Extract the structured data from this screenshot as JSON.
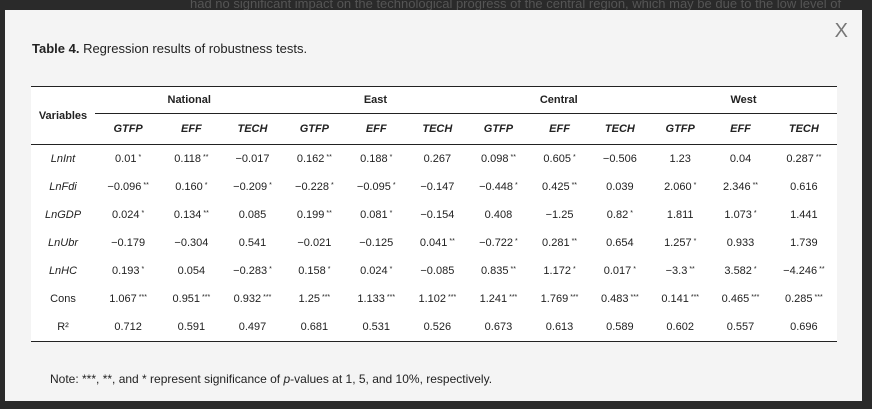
{
  "background_text": "had no significant impact on the technological progress of the central region, which may be due to the low level of",
  "modal": {
    "close_label": "X",
    "title_bold": "Table 4.",
    "title_rest": " Regression results of robustness tests.",
    "note_pre": "Note: ***, **, and * represent significance of ",
    "note_italic": "p",
    "note_post": "-values at 1, 5, and 10%, respectively."
  },
  "table": {
    "variables_header": "Variables",
    "regions": [
      "National",
      "East",
      "Central",
      "West"
    ],
    "subheaders": [
      "GTFP",
      "EFF",
      "TECH",
      "GTFP",
      "EFF",
      "TECH",
      "GTFP",
      "EFF",
      "TECH",
      "GTFP",
      "EFF",
      "TECH"
    ],
    "rows": [
      {
        "label": "LnInt",
        "italic": true,
        "cells": [
          [
            "0.01",
            "*"
          ],
          [
            "0.118",
            "**"
          ],
          [
            "−0.017",
            ""
          ],
          [
            "0.162",
            "**"
          ],
          [
            "0.188",
            "*"
          ],
          [
            "0.267",
            ""
          ],
          [
            "0.098",
            "**"
          ],
          [
            "0.605",
            "*"
          ],
          [
            "−0.506",
            ""
          ],
          [
            "1.23",
            ""
          ],
          [
            "0.04",
            ""
          ],
          [
            "0.287",
            "**"
          ]
        ]
      },
      {
        "label": "LnFdi",
        "italic": true,
        "cells": [
          [
            "−0.096",
            "**"
          ],
          [
            "0.160",
            "*"
          ],
          [
            "−0.209",
            "*"
          ],
          [
            "−0.228",
            "*"
          ],
          [
            "−0.095",
            "*"
          ],
          [
            "−0.147",
            ""
          ],
          [
            "−0.448",
            "*"
          ],
          [
            "0.425",
            "**"
          ],
          [
            "0.039",
            ""
          ],
          [
            "2.060",
            "*"
          ],
          [
            "2.346",
            "**"
          ],
          [
            "0.616",
            ""
          ]
        ]
      },
      {
        "label": "LnGDP",
        "italic": true,
        "cells": [
          [
            "0.024",
            "*"
          ],
          [
            "0.134",
            "**"
          ],
          [
            "0.085",
            ""
          ],
          [
            "0.199",
            "**"
          ],
          [
            "0.081",
            "*"
          ],
          [
            "−0.154",
            ""
          ],
          [
            "0.408",
            ""
          ],
          [
            "−1.25",
            ""
          ],
          [
            "0.82",
            "*"
          ],
          [
            "1.811",
            ""
          ],
          [
            "1.073",
            "*"
          ],
          [
            "1.441",
            ""
          ]
        ]
      },
      {
        "label": "LnUbr",
        "italic": true,
        "cells": [
          [
            "−0.179",
            ""
          ],
          [
            "−0.304",
            ""
          ],
          [
            "0.541",
            ""
          ],
          [
            "−0.021",
            ""
          ],
          [
            "−0.125",
            ""
          ],
          [
            "0.041",
            "**"
          ],
          [
            "−0.722",
            "*"
          ],
          [
            "0.281",
            "**"
          ],
          [
            "0.654",
            ""
          ],
          [
            "1.257",
            "*"
          ],
          [
            "0.933",
            ""
          ],
          [
            "1.739",
            ""
          ]
        ]
      },
      {
        "label": "LnHC",
        "italic": true,
        "cells": [
          [
            "0.193",
            "*"
          ],
          [
            "0.054",
            ""
          ],
          [
            "−0.283",
            "*"
          ],
          [
            "0.158",
            "*"
          ],
          [
            "0.024",
            "*"
          ],
          [
            "−0.085",
            ""
          ],
          [
            "0.835",
            "**"
          ],
          [
            "1.172",
            "*"
          ],
          [
            "0.017",
            "*"
          ],
          [
            "−3.3",
            "**"
          ],
          [
            "3.582",
            "*"
          ],
          [
            "−4.246",
            "**"
          ]
        ]
      },
      {
        "label": "Cons",
        "italic": false,
        "cells": [
          [
            "1.067",
            "***"
          ],
          [
            "0.951",
            "***"
          ],
          [
            "0.932",
            "***"
          ],
          [
            "1.25",
            "***"
          ],
          [
            "1.133",
            "***"
          ],
          [
            "1.102",
            "***"
          ],
          [
            "1.241",
            "***"
          ],
          [
            "1.769",
            "***"
          ],
          [
            "0.483",
            "***"
          ],
          [
            "0.141",
            "***"
          ],
          [
            "0.465",
            "***"
          ],
          [
            "0.285",
            "***"
          ]
        ]
      },
      {
        "label": "R²",
        "italic": false,
        "cells": [
          [
            "0.712",
            ""
          ],
          [
            "0.591",
            ""
          ],
          [
            "0.497",
            ""
          ],
          [
            "0.681",
            ""
          ],
          [
            "0.531",
            ""
          ],
          [
            "0.526",
            ""
          ],
          [
            "0.673",
            ""
          ],
          [
            "0.613",
            ""
          ],
          [
            "0.589",
            ""
          ],
          [
            "0.602",
            ""
          ],
          [
            "0.557",
            ""
          ],
          [
            "0.696",
            ""
          ]
        ]
      }
    ]
  }
}
